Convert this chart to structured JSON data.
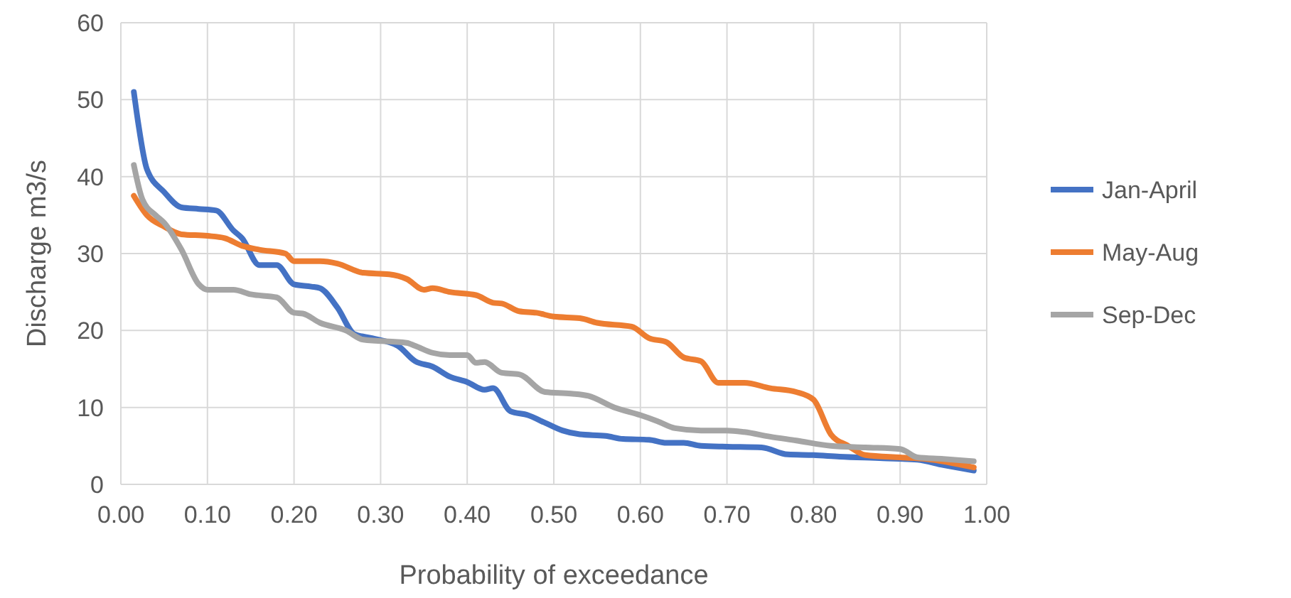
{
  "chart_data": {
    "type": "line",
    "xlabel": "Probability of exceedance",
    "ylabel": "Discharge m3/s",
    "xlim": [
      0,
      1
    ],
    "xticks": [
      {
        "value": 0,
        "label": "0.00"
      },
      {
        "value": 0.1,
        "label": "0.10"
      },
      {
        "value": 0.2,
        "label": "0.20"
      },
      {
        "value": 0.3,
        "label": "0.30"
      },
      {
        "value": 0.4,
        "label": "0.40"
      },
      {
        "value": 0.5,
        "label": "0.50"
      },
      {
        "value": 0.6,
        "label": "0.60"
      },
      {
        "value": 0.7,
        "label": "0.70"
      },
      {
        "value": 0.8,
        "label": "0.80"
      },
      {
        "value": 0.9,
        "label": "0.90"
      },
      {
        "value": 1,
        "label": "1.00"
      }
    ],
    "ylim": [
      0,
      60
    ],
    "yticks": [
      0,
      10,
      20,
      30,
      40,
      50,
      60
    ],
    "grid": true,
    "legend": "right",
    "marker": "none",
    "line_style": "solid",
    "series": [
      {
        "name": "Jan-April",
        "color": "#4472c4",
        "x": [
          0.015,
          0.02,
          0.03,
          0.05,
          0.07,
          0.09,
          0.11,
          0.13,
          0.14,
          0.16,
          0.18,
          0.2,
          0.22,
          0.23,
          0.25,
          0.27,
          0.29,
          0.32,
          0.34,
          0.36,
          0.38,
          0.4,
          0.42,
          0.43,
          0.45,
          0.47,
          0.49,
          0.51,
          0.53,
          0.56,
          0.58,
          0.61,
          0.63,
          0.65,
          0.67,
          0.7,
          0.74,
          0.77,
          0.8,
          0.83,
          0.88,
          0.92,
          0.95,
          0.985
        ],
        "values": [
          51,
          47,
          41,
          38,
          36,
          35.8,
          35.6,
          33,
          32,
          28.5,
          28.5,
          26,
          25.7,
          25.5,
          23,
          19.5,
          19,
          18,
          16,
          15.3,
          14,
          13.3,
          12.3,
          12.5,
          9.5,
          9,
          8,
          7,
          6.5,
          6.3,
          5.9,
          5.8,
          5.4,
          5.4,
          5,
          4.9,
          4.8,
          3.9,
          3.8,
          3.6,
          3.4,
          3.2,
          2.5,
          1.8
        ]
      },
      {
        "name": "May-Aug",
        "color": "#ed7d31",
        "x": [
          0.015,
          0.03,
          0.05,
          0.07,
          0.1,
          0.12,
          0.14,
          0.16,
          0.19,
          0.2,
          0.23,
          0.25,
          0.28,
          0.31,
          0.33,
          0.35,
          0.36,
          0.38,
          0.41,
          0.43,
          0.44,
          0.46,
          0.48,
          0.5,
          0.53,
          0.55,
          0.59,
          0.61,
          0.63,
          0.65,
          0.67,
          0.69,
          0.72,
          0.75,
          0.78,
          0.8,
          0.82,
          0.84,
          0.86,
          0.9,
          0.93,
          0.985
        ],
        "values": [
          37.5,
          35,
          33.5,
          32.5,
          32.3,
          32,
          31,
          30.5,
          30,
          29,
          29,
          28.7,
          27.5,
          27.3,
          26.7,
          25.3,
          25.5,
          25,
          24.6,
          23.6,
          23.5,
          22.5,
          22.3,
          21.8,
          21.6,
          21,
          20.5,
          19,
          18.5,
          16.5,
          16,
          13.2,
          13.2,
          12.5,
          12,
          11,
          6.5,
          5,
          3.8,
          3.5,
          3.3,
          2.2
        ]
      },
      {
        "name": "Sep-Dec",
        "color": "#a5a5a5",
        "x": [
          0.015,
          0.025,
          0.04,
          0.05,
          0.07,
          0.09,
          0.1,
          0.13,
          0.15,
          0.18,
          0.2,
          0.21,
          0.23,
          0.26,
          0.28,
          0.33,
          0.34,
          0.36,
          0.38,
          0.4,
          0.41,
          0.42,
          0.44,
          0.46,
          0.49,
          0.52,
          0.54,
          0.57,
          0.6,
          0.62,
          0.64,
          0.67,
          0.7,
          0.72,
          0.75,
          0.78,
          0.82,
          0.86,
          0.9,
          0.92,
          0.95,
          0.985
        ],
        "values": [
          41.5,
          37,
          35,
          34,
          30.5,
          26,
          25.3,
          25.3,
          24.7,
          24.3,
          22.3,
          22.2,
          21,
          20,
          18.8,
          18.4,
          18,
          17.1,
          16.8,
          16.8,
          15.8,
          15.9,
          14.5,
          14.3,
          12,
          11.8,
          11.5,
          10,
          9,
          8.2,
          7.3,
          7,
          7,
          6.8,
          6.2,
          5.7,
          5,
          4.8,
          4.6,
          3.5,
          3.3,
          3
        ]
      }
    ]
  }
}
